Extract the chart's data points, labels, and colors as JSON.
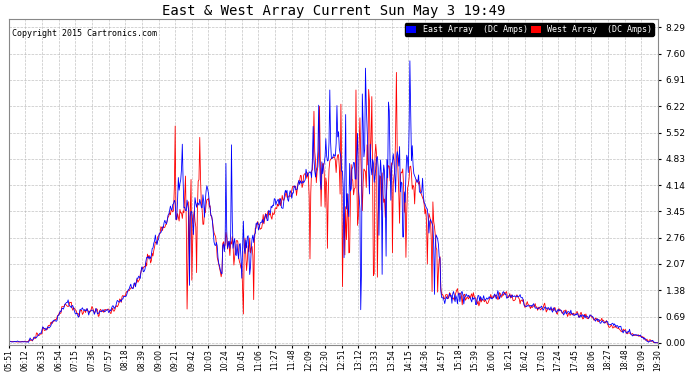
{
  "title": "East & West Array Current Sun May 3 19:49",
  "copyright": "Copyright 2015 Cartronics.com",
  "east_label": "East Array  (DC Amps)",
  "west_label": "West Array  (DC Amps)",
  "east_color": "#0000ff",
  "west_color": "#ff0000",
  "background_color": "#ffffff",
  "plot_bg_color": "#ffffff",
  "grid_color": "#aaaaaa",
  "yticks": [
    0.0,
    0.69,
    1.38,
    2.07,
    2.76,
    3.45,
    4.14,
    4.83,
    5.52,
    6.22,
    6.91,
    7.6,
    8.29
  ],
  "ylim": [
    -0.05,
    8.5
  ],
  "xtick_labels": [
    "05:51",
    "06:12",
    "06:33",
    "06:54",
    "07:15",
    "07:36",
    "07:57",
    "08:18",
    "08:39",
    "09:00",
    "09:21",
    "09:42",
    "10:03",
    "10:24",
    "10:45",
    "11:06",
    "11:27",
    "11:48",
    "12:09",
    "12:30",
    "12:51",
    "13:12",
    "13:33",
    "13:54",
    "14:15",
    "14:36",
    "14:57",
    "15:18",
    "15:39",
    "16:00",
    "16:21",
    "16:42",
    "17:03",
    "17:24",
    "17:45",
    "18:06",
    "18:27",
    "18:48",
    "19:09",
    "19:30"
  ]
}
